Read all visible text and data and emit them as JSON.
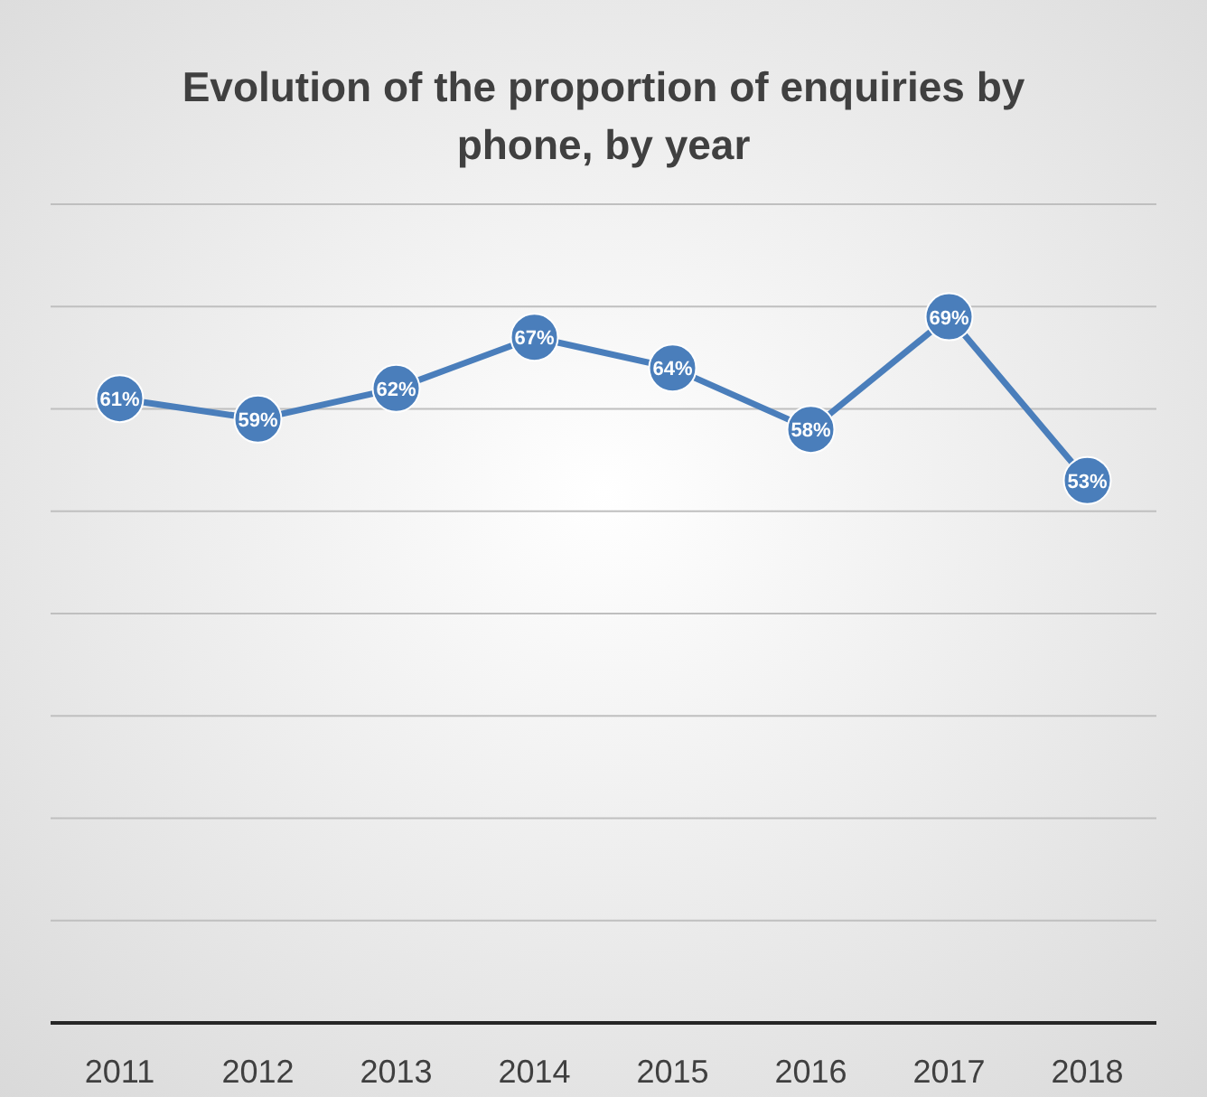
{
  "chart_data": {
    "type": "line",
    "title": "Evolution of the proportion of enquiries by phone, by year",
    "categories": [
      "2011",
      "2012",
      "2013",
      "2014",
      "2015",
      "2016",
      "2017",
      "2018"
    ],
    "series": [
      {
        "color": "#4a7ebb",
        "values": [
          61,
          59,
          62,
          67,
          64,
          58,
          69,
          53
        ],
        "value_labels": [
          "61%",
          "59%",
          "62%",
          "67%",
          "64%",
          "58%",
          "69%",
          "53%"
        ]
      }
    ],
    "ylim": [
      0,
      80
    ],
    "yticks": [
      {
        "value": 0,
        "label": null
      },
      {
        "value": 10,
        "label": null
      },
      {
        "value": 20,
        "label": null
      },
      {
        "value": 30,
        "label": null
      },
      {
        "value": 40,
        "label": null
      },
      {
        "value": 50,
        "label": null
      },
      {
        "value": 60,
        "label": null
      },
      {
        "value": 70,
        "label": null
      },
      {
        "value": 80,
        "label": null
      }
    ],
    "tick_labels": "x",
    "grid": "y",
    "marker": "circle",
    "line_style": "solid"
  }
}
